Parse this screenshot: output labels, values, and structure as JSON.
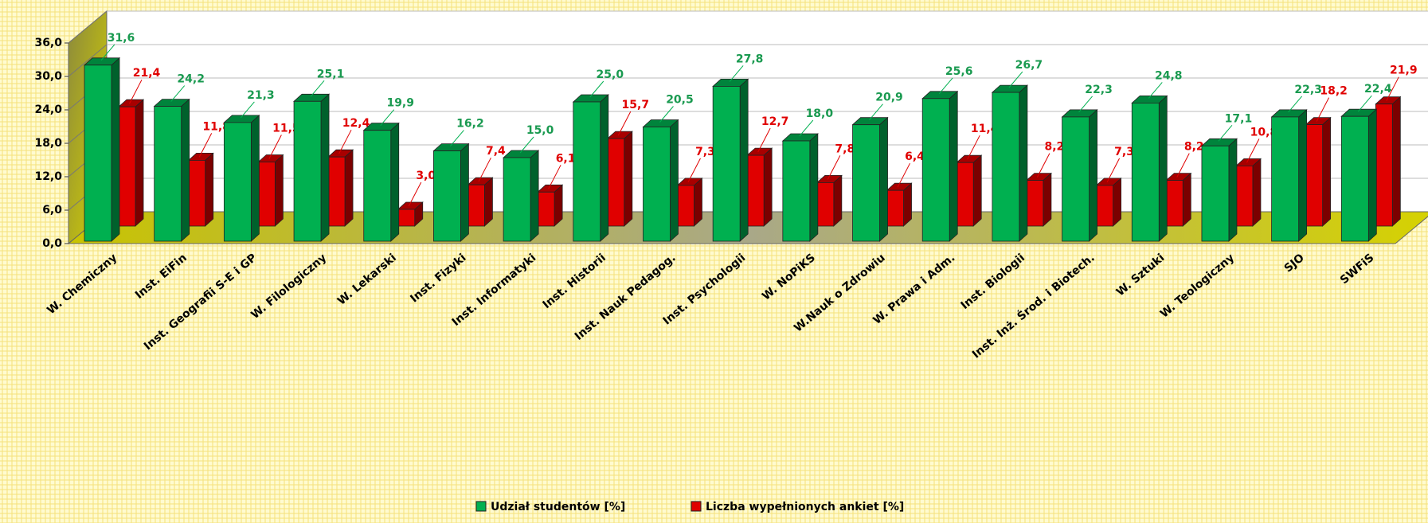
{
  "chart_data": {
    "type": "bar3d",
    "categories": [
      "W. Chemiczny",
      "Inst. EiFin",
      "Inst. Geografii S-E i GP",
      "W. Filologiczny",
      "W. Lekarski",
      "Inst. Fizyki",
      "Inst. Informatyki",
      "Inst. Historii",
      "Inst. Nauk Pedagog.",
      "Inst. Psychologii",
      "W. NoPiKS",
      "W.Nauk o Zdrowiu",
      "W. Prawa i Adm.",
      "Inst. Biologii",
      "Inst. Inż. Środ. i Biotech.",
      "W. Sztuki",
      "W. Teologiczny",
      "SJO",
      "SWFiS"
    ],
    "series": [
      {
        "name": "Udział studentów [%]",
        "color": "#00b050",
        "values": [
          31.6,
          24.2,
          21.3,
          25.1,
          19.9,
          16.2,
          15.0,
          25.0,
          20.5,
          27.8,
          18.0,
          20.9,
          25.6,
          26.7,
          22.3,
          24.8,
          17.1,
          22.3,
          22.4
        ],
        "value_labels": [
          "31,6",
          "24,2",
          "21,3",
          "25,1",
          "19,9",
          "16,2",
          "15,0",
          "25,0",
          "20,5",
          "27,8",
          "18,0",
          "20,9",
          "25,6",
          "26,7",
          "22,3",
          "24,8",
          "17,1",
          "22,3",
          "22,4"
        ]
      },
      {
        "name": "Liczba wypełnionych ankiet [%]",
        "color": "#e00000",
        "values": [
          21.4,
          11.8,
          11.5,
          12.4,
          3.0,
          7.4,
          6.1,
          15.7,
          7.3,
          12.7,
          7.8,
          6.4,
          11.4,
          8.2,
          7.3,
          8.2,
          10.8,
          18.2,
          21.9
        ],
        "value_labels": [
          "21,4",
          "11,8",
          "11,5",
          "12,4",
          "3,0",
          "7,4",
          "6,1",
          "15,7",
          "7,3",
          "12,7",
          "7,8",
          "6,4",
          "11,4",
          "8,2",
          "7,3",
          "8,2",
          "10,8",
          "18,2",
          "21,9"
        ]
      }
    ],
    "ylim": [
      0,
      36
    ],
    "yticks": [
      {
        "value": 0,
        "label": "0,0"
      },
      {
        "value": 6,
        "label": "6,0"
      },
      {
        "value": 12,
        "label": "12,0"
      },
      {
        "value": 18,
        "label": "18,0"
      },
      {
        "value": 24,
        "label": "24,0"
      },
      {
        "value": 30,
        "label": "30,0"
      },
      {
        "value": 36,
        "label": "36,0"
      }
    ],
    "grid": true,
    "legend": "bottom"
  }
}
